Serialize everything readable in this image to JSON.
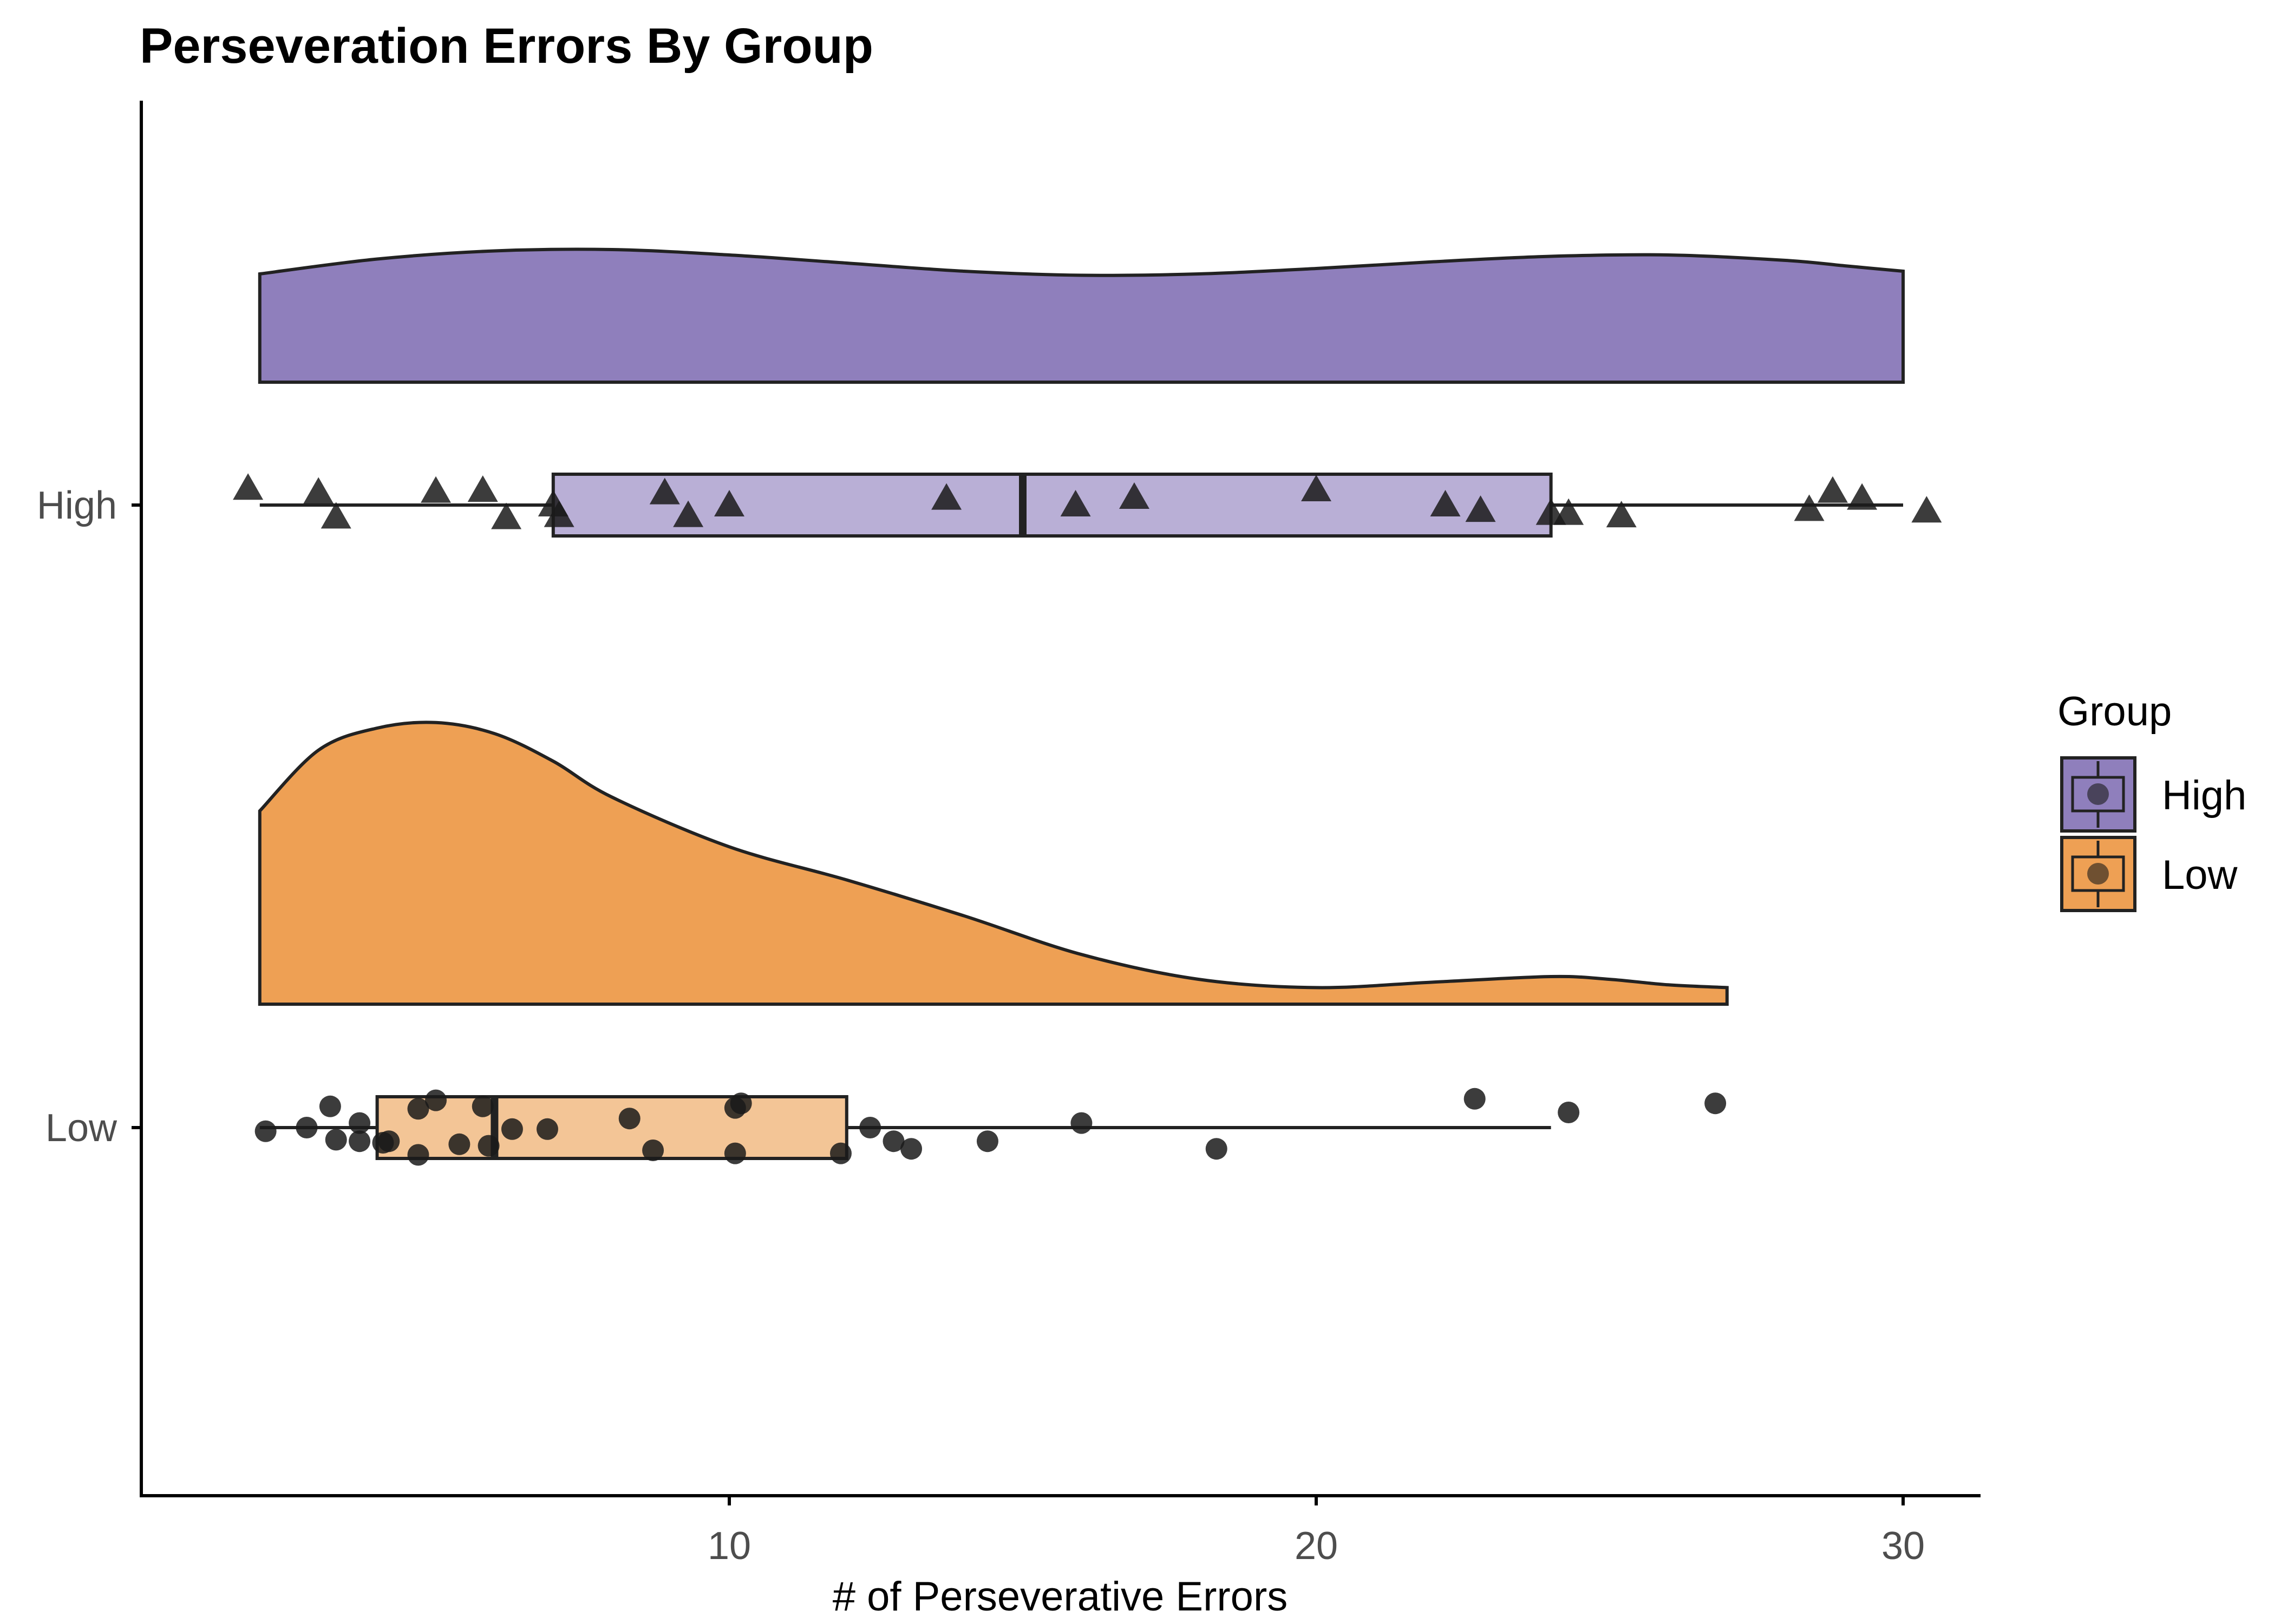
{
  "chart_data": {
    "type": "raincloud",
    "title": "Perseveration Errors By Group",
    "xlabel": "# of Perseverative Errors",
    "ylabel": "",
    "xlim": [
      0,
      32
    ],
    "x_ticks": [
      10,
      20,
      30
    ],
    "grid": false,
    "legend": {
      "title": "Group",
      "placement": "right",
      "entries": [
        "High",
        "Low"
      ]
    },
    "categories": [
      "High",
      "Low"
    ],
    "series": [
      {
        "name": "High",
        "color": "#8f7fbc",
        "box_color": "#b9afd6",
        "point_shape": "triangle",
        "box": {
          "whisker_low": 2,
          "q1": 7,
          "median": 15,
          "q3": 24,
          "whisker_high": 30
        },
        "density": {
          "x": [
            2,
            4,
            6,
            8,
            10,
            12,
            14,
            16,
            18,
            20,
            22,
            24,
            26,
            28,
            29,
            30
          ],
          "y": [
            0.8,
            0.91,
            0.97,
            0.98,
            0.94,
            0.88,
            0.82,
            0.79,
            0.8,
            0.84,
            0.89,
            0.93,
            0.94,
            0.9,
            0.86,
            0.82
          ]
        },
        "points": [
          [
            1.8,
            0.55
          ],
          [
            3.0,
            0.42
          ],
          [
            3.3,
            -0.4
          ],
          [
            5.0,
            0.45
          ],
          [
            5.8,
            0.48
          ],
          [
            6.2,
            -0.42
          ],
          [
            7.0,
            0.0
          ],
          [
            7.1,
            -0.35
          ],
          [
            8.9,
            0.4
          ],
          [
            9.3,
            -0.35
          ],
          [
            10.0,
            0.0
          ],
          [
            13.7,
            0.22
          ],
          [
            15.9,
            0.0
          ],
          [
            16.9,
            0.25
          ],
          [
            20.0,
            0.5
          ],
          [
            22.2,
            0.0
          ],
          [
            22.8,
            -0.18
          ],
          [
            24.0,
            -0.28
          ],
          [
            24.3,
            -0.28
          ],
          [
            25.2,
            -0.36
          ],
          [
            28.4,
            -0.15
          ],
          [
            28.8,
            0.45
          ],
          [
            29.3,
            0.22
          ],
          [
            30.4,
            -0.2
          ]
        ]
      },
      {
        "name": "Low",
        "color": "#eea054",
        "box_color": "#f3c596",
        "point_shape": "circle",
        "box": {
          "whisker_low": 2,
          "q1": 4,
          "median": 6,
          "q3": 12,
          "whisker_high": 24
        },
        "density": {
          "x": [
            2,
            3,
            4,
            5,
            6,
            7,
            8,
            10,
            12,
            14,
            16,
            18,
            20,
            22,
            24,
            25,
            26,
            27
          ],
          "y": [
            0.7,
            0.92,
            1.0,
            1.02,
            0.98,
            0.88,
            0.75,
            0.57,
            0.45,
            0.32,
            0.18,
            0.09,
            0.06,
            0.08,
            0.1,
            0.09,
            0.07,
            0.06
          ]
        },
        "points": [
          [
            2.1,
            -0.12
          ],
          [
            2.8,
            0.0
          ],
          [
            3.2,
            0.7
          ],
          [
            3.3,
            -0.4
          ],
          [
            3.7,
            -0.45
          ],
          [
            3.7,
            0.15
          ],
          [
            4.1,
            -0.5
          ],
          [
            4.2,
            -0.45
          ],
          [
            4.7,
            0.62
          ],
          [
            4.7,
            -0.9
          ],
          [
            5.0,
            0.9
          ],
          [
            5.4,
            -0.55
          ],
          [
            5.8,
            0.7
          ],
          [
            5.9,
            -0.6
          ],
          [
            6.3,
            -0.05
          ],
          [
            6.9,
            -0.05
          ],
          [
            8.3,
            0.3
          ],
          [
            8.7,
            -0.75
          ],
          [
            10.1,
            0.65
          ],
          [
            10.2,
            0.8
          ],
          [
            10.1,
            -0.85
          ],
          [
            11.9,
            -0.85
          ],
          [
            12.4,
            0.0
          ],
          [
            12.8,
            -0.45
          ],
          [
            13.1,
            -0.7
          ],
          [
            14.4,
            -0.45
          ],
          [
            16.0,
            0.15
          ],
          [
            18.3,
            -0.7
          ],
          [
            22.7,
            0.95
          ],
          [
            24.3,
            0.5
          ],
          [
            26.8,
            0.8
          ]
        ]
      }
    ]
  }
}
